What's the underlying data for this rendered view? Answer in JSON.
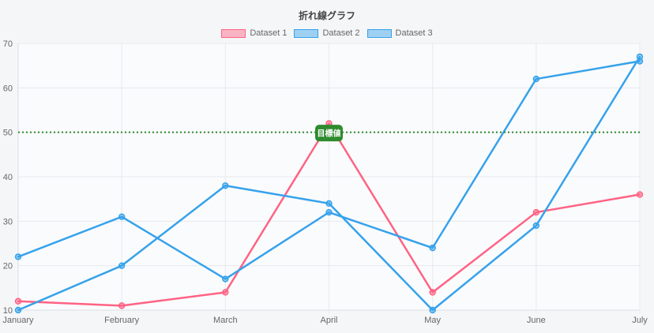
{
  "page": {
    "background": "#f5f6f8",
    "plot_background": "#fafbfd"
  },
  "chart": {
    "title": "折れ線グラフ",
    "legend": [
      {
        "label": "Dataset 1",
        "border": "#ff6384",
        "fill": "rgba(255,99,132,0.45)"
      },
      {
        "label": "Dataset 2",
        "border": "#36a2eb",
        "fill": "rgba(54,162,235,0.45)"
      },
      {
        "label": "Dataset 3",
        "border": "#36a2eb",
        "fill": "rgba(54,162,235,0.45)"
      }
    ]
  },
  "chart_data": {
    "type": "line",
    "title": "折れ線グラフ",
    "categories": [
      "January",
      "February",
      "March",
      "April",
      "May",
      "June",
      "July"
    ],
    "series": [
      {
        "name": "Dataset 1",
        "color": "#ff6384",
        "point_fill": "rgba(255,99,132,0.45)",
        "values": [
          12,
          11,
          14,
          52,
          14,
          32,
          36
        ]
      },
      {
        "name": "Dataset 2",
        "color": "#36a2eb",
        "point_fill": "rgba(54,162,235,0.45)",
        "values": [
          22,
          31,
          17,
          32,
          24,
          62,
          66
        ]
      },
      {
        "name": "Dataset 3",
        "color": "#36a2eb",
        "point_fill": "rgba(54,162,235,0.45)",
        "values": [
          10,
          20,
          38,
          34,
          10,
          29,
          67
        ]
      }
    ],
    "annotation": {
      "value": 50,
      "label": "目標値",
      "color": "#2e8b2e"
    },
    "xlabel": "",
    "ylabel": "",
    "ylim": [
      10,
      70
    ],
    "ytick_step": 10,
    "grid": true,
    "legend_position": "top",
    "colors": {
      "grid": "#e8e9ed",
      "axis_border": "#dcdee3",
      "tick_text": "#666666"
    }
  }
}
